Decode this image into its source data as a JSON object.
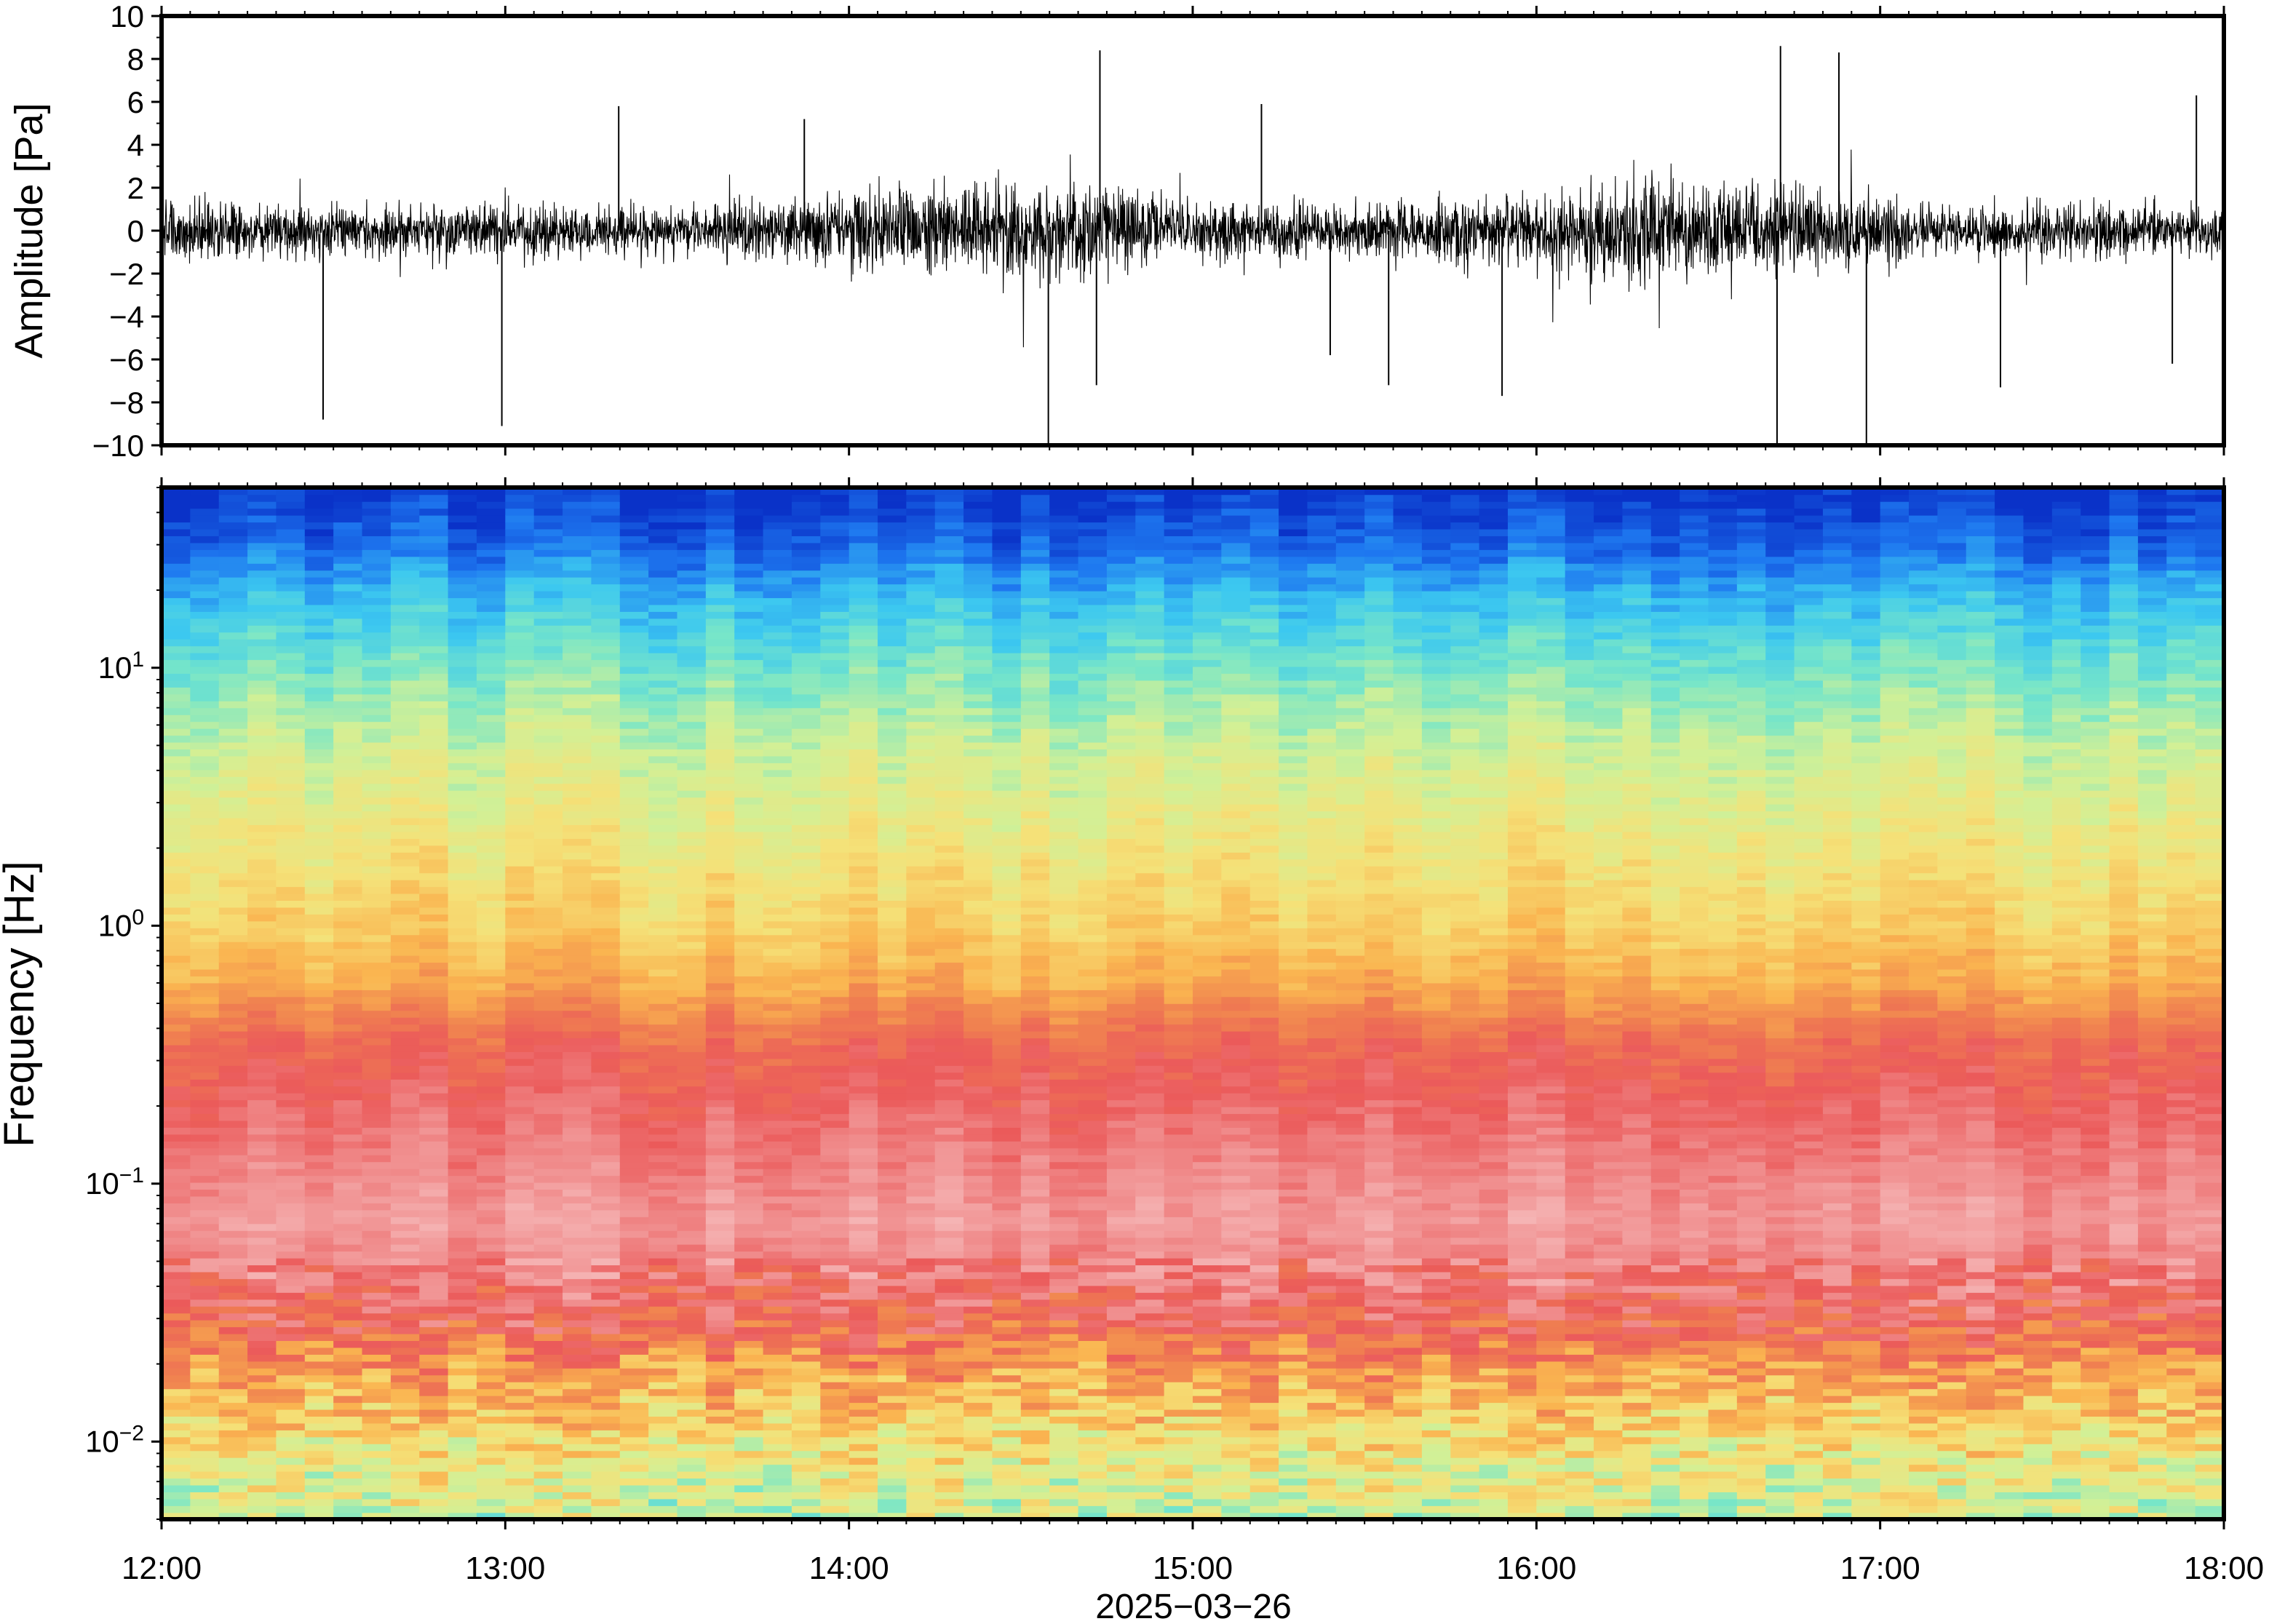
{
  "chart_data": [
    {
      "type": "line",
      "ylabel": "Amplitude [Pa]",
      "ylim": [
        -10,
        10
      ],
      "yticks": [
        "10",
        "8",
        "6",
        "4",
        "2",
        "0",
        "−2",
        "−4",
        "−6",
        "−8",
        "−10"
      ],
      "ytick_values": [
        10,
        8,
        6,
        4,
        2,
        0,
        -2,
        -4,
        -6,
        -8,
        -10
      ],
      "x_start": "12:00",
      "x_end": "18:00",
      "envelope": {
        "description_units": "Pa",
        "times_h": [
          12.0,
          12.5,
          13.0,
          13.5,
          13.9,
          14.25,
          14.5,
          14.75,
          15.0,
          15.5,
          16.0,
          16.25,
          16.5,
          16.9,
          17.2,
          17.6,
          18.0
        ],
        "amplitude": [
          1.8,
          1.6,
          1.7,
          1.5,
          2.2,
          3.0,
          2.8,
          3.2,
          1.8,
          1.7,
          2.2,
          3.2,
          3.0,
          2.4,
          1.4,
          1.8,
          1.5
        ]
      },
      "spikes": [
        {
          "t": 12.47,
          "v": -8.8
        },
        {
          "t": 12.99,
          "v": -9.1
        },
        {
          "t": 13.33,
          "v": 5.8
        },
        {
          "t": 14.58,
          "v": -10
        },
        {
          "t": 14.73,
          "v": 8.4
        },
        {
          "t": 14.72,
          "v": -7.2
        },
        {
          "t": 15.2,
          "v": 5.9
        },
        {
          "t": 15.57,
          "v": -7.2
        },
        {
          "t": 15.9,
          "v": -7.7
        },
        {
          "t": 16.71,
          "v": 8.6
        },
        {
          "t": 16.7,
          "v": -10
        },
        {
          "t": 16.88,
          "v": 8.3
        },
        {
          "t": 16.96,
          "v": -10
        },
        {
          "t": 17.35,
          "v": -7.3
        },
        {
          "t": 17.92,
          "v": 6.3
        },
        {
          "t": 17.85,
          "v": -6.2
        },
        {
          "t": 13.87,
          "v": 5.2
        },
        {
          "t": 15.4,
          "v": -5.8
        }
      ]
    },
    {
      "type": "heatmap",
      "ylabel": "Frequency [Hz]",
      "yscale": "log",
      "ylim": [
        0.005,
        50
      ],
      "yticks": [
        {
          "value": 0.01,
          "base": "10",
          "exp": "−2"
        },
        {
          "value": 0.1,
          "base": "10",
          "exp": "−1"
        },
        {
          "value": 1,
          "base": "10",
          "exp": "0"
        },
        {
          "value": 10,
          "base": "10",
          "exp": "1"
        }
      ],
      "xticks": [
        "12:00",
        "13:00",
        "14:00",
        "15:00",
        "16:00",
        "17:00",
        "18:00"
      ],
      "xtick_hours": [
        12,
        13,
        14,
        15,
        16,
        17,
        18
      ],
      "xlim_hours": [
        12,
        18
      ],
      "xlabel": "2025−03−26",
      "colormap": [
        "#0a32c8",
        "#1e78f0",
        "#3cc8f0",
        "#78e6c8",
        "#d2f096",
        "#f5e178",
        "#fab450",
        "#f08250",
        "#eb5a5a",
        "#f08c8c",
        "#f5b4b4"
      ],
      "rows_by_frequency": [
        {
          "f_hz": 50,
          "level": 0.0
        },
        {
          "f_hz": 30,
          "level": 0.08
        },
        {
          "f_hz": 18,
          "level": 0.2
        },
        {
          "f_hz": 10,
          "level": 0.3
        },
        {
          "f_hz": 5,
          "level": 0.4
        },
        {
          "f_hz": 2,
          "level": 0.48
        },
        {
          "f_hz": 1,
          "level": 0.54
        },
        {
          "f_hz": 0.6,
          "level": 0.62
        },
        {
          "f_hz": 0.35,
          "level": 0.76
        },
        {
          "f_hz": 0.15,
          "level": 0.86
        },
        {
          "f_hz": 0.07,
          "level": 0.94
        },
        {
          "f_hz": 0.03,
          "level": 0.8
        },
        {
          "f_hz": 0.02,
          "level": 0.66
        },
        {
          "f_hz": 0.01,
          "level": 0.5
        },
        {
          "f_hz": 0.005,
          "level": 0.4
        }
      ]
    }
  ]
}
